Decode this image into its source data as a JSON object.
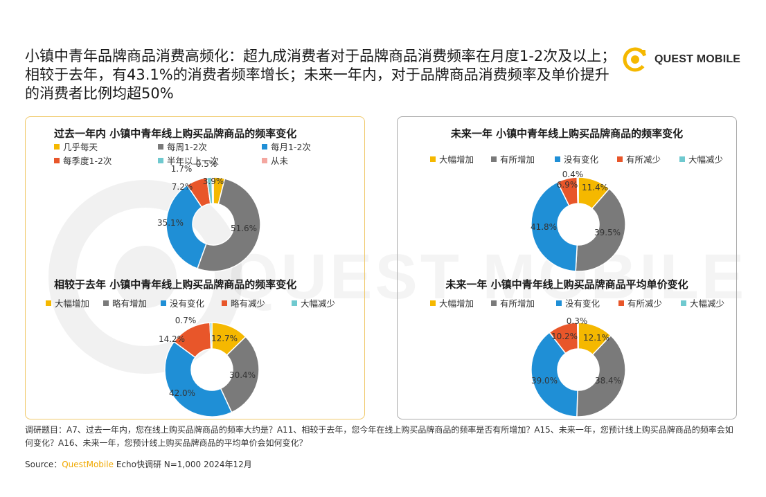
{
  "header": {
    "title": "小镇中青年品牌商品消费高频化：超九成消费者对于品牌商品消费频率在月度1-2次及以上；相较于去年，有43.1%的消费者频率增长；未来一年内，对于品牌商品消费频率及单价提升的消费者比例均超50%",
    "logo_text": "QUEST MOBILE"
  },
  "watermark": "QUEST MOBILE",
  "colors": {
    "yellow": "#f5b800",
    "gray": "#7a7a7a",
    "blue": "#1f8fd6",
    "orange": "#e8562a",
    "teal": "#6fc9cf",
    "pink": "#f4a7a0"
  },
  "chart_data": [
    {
      "id": "past-year",
      "type": "pie",
      "title": "过去一年内 小镇中青年线上购买品牌商品的频率变化",
      "categories": [
        "几乎每天",
        "每周1-2次",
        "每月1-2次",
        "每季度1-2次",
        "半年以上一次",
        "从未"
      ],
      "values": [
        3.9,
        51.6,
        35.1,
        7.2,
        1.7,
        0.5
      ],
      "labels": [
        "3.9%",
        "51.6%",
        "35.1%",
        "7.2%",
        "1.7%",
        "0.5%"
      ],
      "colors": [
        "#f5b800",
        "#7a7a7a",
        "#1f8fd6",
        "#e8562a",
        "#6fc9cf",
        "#f4a7a0"
      ]
    },
    {
      "id": "vs-last-year",
      "type": "pie",
      "title": "相较于去年 小镇中青年线上购买品牌商品的频率变化",
      "categories": [
        "大幅增加",
        "略有增加",
        "没有变化",
        "略有减少",
        "大幅减少"
      ],
      "values": [
        12.7,
        30.4,
        42.0,
        14.2,
        0.7
      ],
      "labels": [
        "12.7%",
        "30.4%",
        "42.0%",
        "14.2%",
        "0.7%"
      ],
      "colors": [
        "#f5b800",
        "#7a7a7a",
        "#1f8fd6",
        "#e8562a",
        "#6fc9cf"
      ]
    },
    {
      "id": "next-year-frequency",
      "type": "pie",
      "title": "未来一年 小镇中青年线上购买品牌商品的频率变化",
      "categories": [
        "大幅增加",
        "有所增加",
        "没有变化",
        "有所减少",
        "大幅减少"
      ],
      "values": [
        11.4,
        39.5,
        41.8,
        6.9,
        0.4
      ],
      "labels": [
        "11.4%",
        "39.5%",
        "41.8%",
        "6.9%",
        "0.4%"
      ],
      "colors": [
        "#f5b800",
        "#7a7a7a",
        "#1f8fd6",
        "#e8562a",
        "#6fc9cf"
      ]
    },
    {
      "id": "next-year-price",
      "type": "pie",
      "title": "未来一年 小镇中青年线上购买品牌商品平均单价变化",
      "categories": [
        "大幅增加",
        "有所增加",
        "没有变化",
        "有所减少",
        "大幅减少"
      ],
      "values": [
        12.1,
        38.4,
        39.0,
        10.2,
        0.3
      ],
      "labels": [
        "12.1%",
        "38.4%",
        "39.0%",
        "10.2%",
        "0.3%"
      ],
      "colors": [
        "#f5b800",
        "#7a7a7a",
        "#1f8fd6",
        "#e8562a",
        "#6fc9cf"
      ]
    }
  ],
  "footnote": "调研题目：A7、过去一年内，您在线上购买品牌商品的频率大约是？A11、相较于去年，您今年在线上购买品牌商品的频率是否有所增加？A15、未来一年，您预计线上购买品牌商品的频率会如何变化？A16、未来一年，您预计线上购买品牌商品的平均单价会如何变化？",
  "source": {
    "prefix": "Source：",
    "brand": "QuestMobile",
    "rest": "Echo快调研 N=1,000 2024年12月"
  }
}
